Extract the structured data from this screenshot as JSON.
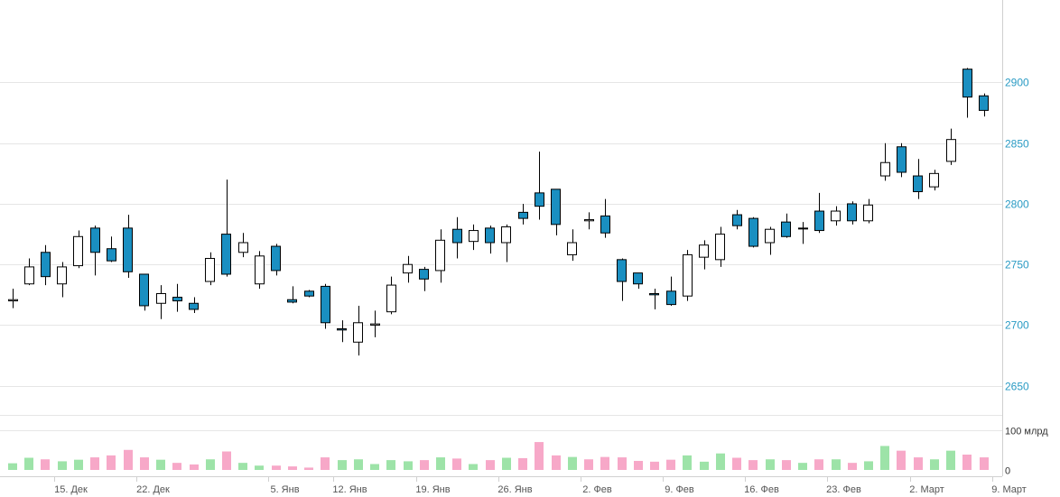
{
  "chart_data": {
    "type": "candlestick",
    "title": "",
    "y_axis": {
      "side": "right",
      "ticks": [
        2650,
        2700,
        2750,
        2800,
        2850,
        2900
      ],
      "range": [
        2626,
        2968
      ]
    },
    "volume_axis": {
      "side": "right",
      "ticks": [
        {
          "value": 0,
          "label": "0"
        },
        {
          "value": 100,
          "label": "100 млрд"
        }
      ],
      "range": [
        0,
        140
      ]
    },
    "x_ticks": [
      "15. Дек",
      "22. Дек",
      "5. Янв",
      "12. Янв",
      "19. Янв",
      "26. Янв",
      "2. Фев",
      "9. Фев",
      "16. Фев",
      "23. Фев",
      "2. Март",
      "9. Март"
    ],
    "x_tick_slots": [
      3,
      8,
      16,
      20,
      25,
      30,
      35,
      40,
      45,
      50,
      55,
      60
    ],
    "colors": {
      "up_body": "#ffffff",
      "down_body": "#1a8fc1",
      "wick": "#000000",
      "volume_up": "#9de3a8",
      "volume_down": "#f7a8c8",
      "grid": "#e6e6e6",
      "price_label": "#2a9bc4"
    },
    "candles": [
      {
        "slot": 0,
        "o": 2720,
        "h": 2730,
        "l": 2714,
        "c": 2721,
        "v": 17,
        "vc": "up"
      },
      {
        "slot": 1,
        "o": 2734,
        "h": 2755,
        "l": 2733,
        "c": 2748,
        "v": 31,
        "vc": "up"
      },
      {
        "slot": 2,
        "o": 2760,
        "h": 2766,
        "l": 2733,
        "c": 2740,
        "v": 27,
        "vc": "down"
      },
      {
        "slot": 3,
        "o": 2734,
        "h": 2752,
        "l": 2723,
        "c": 2748,
        "v": 22,
        "vc": "up"
      },
      {
        "slot": 4,
        "o": 2749,
        "h": 2778,
        "l": 2747,
        "c": 2773,
        "v": 26,
        "vc": "up"
      },
      {
        "slot": 5,
        "o": 2780,
        "h": 2782,
        "l": 2741,
        "c": 2760,
        "v": 32,
        "vc": "down"
      },
      {
        "slot": 6,
        "o": 2763,
        "h": 2773,
        "l": 2752,
        "c": 2753,
        "v": 37,
        "vc": "down"
      },
      {
        "slot": 7,
        "o": 2780,
        "h": 2791,
        "l": 2739,
        "c": 2744,
        "v": 51,
        "vc": "down"
      },
      {
        "slot": 8,
        "o": 2742,
        "h": 2742,
        "l": 2712,
        "c": 2716,
        "v": 32,
        "vc": "down"
      },
      {
        "slot": 9,
        "o": 2718,
        "h": 2733,
        "l": 2705,
        "c": 2726,
        "v": 26,
        "vc": "up"
      },
      {
        "slot": 10,
        "o": 2723,
        "h": 2734,
        "l": 2711,
        "c": 2720,
        "v": 18,
        "vc": "down"
      },
      {
        "slot": 11,
        "o": 2718,
        "h": 2723,
        "l": 2710,
        "c": 2713,
        "v": 14,
        "vc": "down"
      },
      {
        "slot": 12,
        "o": 2736,
        "h": 2760,
        "l": 2733,
        "c": 2755,
        "v": 27,
        "vc": "up"
      },
      {
        "slot": 13,
        "o": 2775,
        "h": 2820,
        "l": 2740,
        "c": 2742,
        "v": 47,
        "vc": "down"
      },
      {
        "slot": 14,
        "o": 2760,
        "h": 2776,
        "l": 2756,
        "c": 2768,
        "v": 18,
        "vc": "up"
      },
      {
        "slot": 15,
        "o": 2734,
        "h": 2761,
        "l": 2730,
        "c": 2757,
        "v": 11,
        "vc": "up"
      },
      {
        "slot": 16,
        "o": 2765,
        "h": 2767,
        "l": 2741,
        "c": 2745,
        "v": 11,
        "vc": "down"
      },
      {
        "slot": 17,
        "o": 2721,
        "h": 2732,
        "l": 2718,
        "c": 2719,
        "v": 9,
        "vc": "down"
      },
      {
        "slot": 18,
        "o": 2728,
        "h": 2729,
        "l": 2723,
        "c": 2724,
        "v": 6,
        "vc": "down"
      },
      {
        "slot": 19,
        "o": 2732,
        "h": 2734,
        "l": 2697,
        "c": 2702,
        "v": 32,
        "vc": "down"
      },
      {
        "slot": 20,
        "o": 2697,
        "h": 2704,
        "l": 2686,
        "c": 2696,
        "v": 25,
        "vc": "up"
      },
      {
        "slot": 21,
        "o": 2686,
        "h": 2716,
        "l": 2675,
        "c": 2702,
        "v": 27,
        "vc": "up"
      },
      {
        "slot": 22,
        "o": 2700,
        "h": 2712,
        "l": 2690,
        "c": 2701,
        "v": 15,
        "vc": "up"
      },
      {
        "slot": 23,
        "o": 2711,
        "h": 2740,
        "l": 2709,
        "c": 2733,
        "v": 25,
        "vc": "up"
      },
      {
        "slot": 24,
        "o": 2743,
        "h": 2757,
        "l": 2735,
        "c": 2750,
        "v": 22,
        "vc": "up"
      },
      {
        "slot": 25,
        "o": 2746,
        "h": 2748,
        "l": 2728,
        "c": 2738,
        "v": 25,
        "vc": "down"
      },
      {
        "slot": 26,
        "o": 2745,
        "h": 2779,
        "l": 2735,
        "c": 2770,
        "v": 32,
        "vc": "up"
      },
      {
        "slot": 27,
        "o": 2779,
        "h": 2789,
        "l": 2755,
        "c": 2768,
        "v": 29,
        "vc": "down"
      },
      {
        "slot": 28,
        "o": 2769,
        "h": 2783,
        "l": 2762,
        "c": 2778,
        "v": 15,
        "vc": "up"
      },
      {
        "slot": 29,
        "o": 2780,
        "h": 2782,
        "l": 2759,
        "c": 2768,
        "v": 25,
        "vc": "down"
      },
      {
        "slot": 30,
        "o": 2768,
        "h": 2783,
        "l": 2752,
        "c": 2781,
        "v": 31,
        "vc": "up"
      },
      {
        "slot": 31,
        "o": 2793,
        "h": 2800,
        "l": 2783,
        "c": 2788,
        "v": 30,
        "vc": "down"
      },
      {
        "slot": 32,
        "o": 2809,
        "h": 2843,
        "l": 2787,
        "c": 2798,
        "v": 71,
        "vc": "down"
      },
      {
        "slot": 33,
        "o": 2812,
        "h": 2812,
        "l": 2774,
        "c": 2783,
        "v": 37,
        "vc": "down"
      },
      {
        "slot": 34,
        "o": 2758,
        "h": 2779,
        "l": 2753,
        "c": 2768,
        "v": 33,
        "vc": "up"
      },
      {
        "slot": 35,
        "o": 2786,
        "h": 2793,
        "l": 2779,
        "c": 2787,
        "v": 27,
        "vc": "down"
      },
      {
        "slot": 36,
        "o": 2790,
        "h": 2804,
        "l": 2772,
        "c": 2776,
        "v": 33,
        "vc": "down"
      },
      {
        "slot": 37,
        "o": 2754,
        "h": 2755,
        "l": 2720,
        "c": 2736,
        "v": 32,
        "vc": "down"
      },
      {
        "slot": 38,
        "o": 2743,
        "h": 2743,
        "l": 2730,
        "c": 2734,
        "v": 23,
        "vc": "down"
      },
      {
        "slot": 39,
        "o": 2726,
        "h": 2730,
        "l": 2713,
        "c": 2725,
        "v": 21,
        "vc": "down"
      },
      {
        "slot": 40,
        "o": 2728,
        "h": 2740,
        "l": 2716,
        "c": 2717,
        "v": 26,
        "vc": "down"
      },
      {
        "slot": 41,
        "o": 2724,
        "h": 2762,
        "l": 2720,
        "c": 2758,
        "v": 37,
        "vc": "up"
      },
      {
        "slot": 42,
        "o": 2756,
        "h": 2770,
        "l": 2746,
        "c": 2766,
        "v": 21,
        "vc": "up"
      },
      {
        "slot": 43,
        "o": 2754,
        "h": 2781,
        "l": 2748,
        "c": 2775,
        "v": 42,
        "vc": "up"
      },
      {
        "slot": 44,
        "o": 2791,
        "h": 2795,
        "l": 2779,
        "c": 2782,
        "v": 31,
        "vc": "down"
      },
      {
        "slot": 45,
        "o": 2788,
        "h": 2789,
        "l": 2764,
        "c": 2765,
        "v": 25,
        "vc": "down"
      },
      {
        "slot": 46,
        "o": 2768,
        "h": 2781,
        "l": 2758,
        "c": 2779,
        "v": 27,
        "vc": "up"
      },
      {
        "slot": 47,
        "o": 2785,
        "h": 2792,
        "l": 2772,
        "c": 2773,
        "v": 25,
        "vc": "down"
      },
      {
        "slot": 48,
        "o": 2780,
        "h": 2785,
        "l": 2767,
        "c": 2780,
        "v": 18,
        "vc": "up"
      },
      {
        "slot": 49,
        "o": 2794,
        "h": 2809,
        "l": 2776,
        "c": 2778,
        "v": 27,
        "vc": "down"
      },
      {
        "slot": 50,
        "o": 2786,
        "h": 2798,
        "l": 2782,
        "c": 2794,
        "v": 27,
        "vc": "up"
      },
      {
        "slot": 51,
        "o": 2800,
        "h": 2802,
        "l": 2783,
        "c": 2786,
        "v": 18,
        "vc": "down"
      },
      {
        "slot": 52,
        "o": 2786,
        "h": 2804,
        "l": 2784,
        "c": 2799,
        "v": 22,
        "vc": "up"
      },
      {
        "slot": 53,
        "o": 2823,
        "h": 2850,
        "l": 2819,
        "c": 2834,
        "v": 61,
        "vc": "up"
      },
      {
        "slot": 54,
        "o": 2847,
        "h": 2850,
        "l": 2822,
        "c": 2826,
        "v": 49,
        "vc": "down"
      },
      {
        "slot": 55,
        "o": 2823,
        "h": 2837,
        "l": 2804,
        "c": 2810,
        "v": 32,
        "vc": "down"
      },
      {
        "slot": 56,
        "o": 2814,
        "h": 2828,
        "l": 2811,
        "c": 2825,
        "v": 27,
        "vc": "up"
      },
      {
        "slot": 57,
        "o": 2835,
        "h": 2862,
        "l": 2832,
        "c": 2853,
        "v": 49,
        "vc": "up"
      },
      {
        "slot": 58,
        "o": 2911,
        "h": 2912,
        "l": 2871,
        "c": 2888,
        "v": 39,
        "vc": "down"
      },
      {
        "slot": 59,
        "o": 2889,
        "h": 2891,
        "l": 2872,
        "c": 2877,
        "v": 32,
        "vc": "down"
      }
    ]
  }
}
